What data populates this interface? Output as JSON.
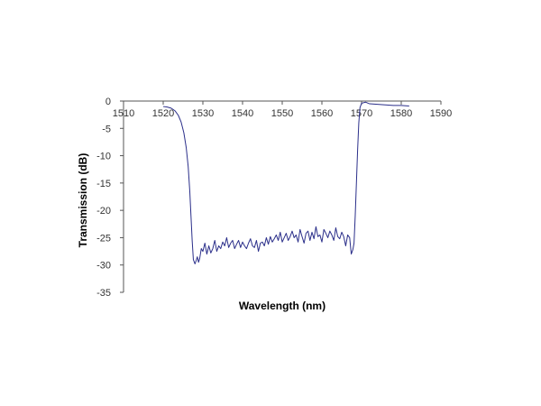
{
  "chart_data": {
    "type": "line",
    "title": "",
    "xlabel": "Wavelength (nm)",
    "ylabel": "Transmission (dB)",
    "xlim": [
      1510,
      1590
    ],
    "ylim": [
      -35,
      0
    ],
    "x_ticks": [
      1510,
      1520,
      1530,
      1540,
      1550,
      1560,
      1570,
      1580,
      1590
    ],
    "y_ticks": [
      0,
      -5,
      -10,
      -15,
      -20,
      -25,
      -30,
      -35
    ],
    "x_axis_position": "top",
    "grid": false,
    "legend": "none",
    "line_color": "#2b2f8a",
    "series": [
      {
        "x": [
          1520.0,
          1521.0,
          1522.0,
          1523.0,
          1523.8,
          1524.5,
          1525.2,
          1525.8,
          1526.3,
          1526.7,
          1527.0,
          1527.3,
          1527.6,
          1528.0,
          1528.3,
          1528.6,
          1528.9,
          1529.2,
          1529.6,
          1530.0,
          1530.5,
          1531.0,
          1531.5,
          1532.0,
          1532.5,
          1533.0,
          1533.5,
          1534.0,
          1534.5,
          1535.0,
          1535.5,
          1536.0,
          1536.5,
          1537.0,
          1537.5,
          1538.0,
          1538.5,
          1539.0,
          1539.5,
          1540.0,
          1540.5,
          1541.0,
          1541.5,
          1542.0,
          1542.5,
          1543.0,
          1543.5,
          1544.0,
          1544.5,
          1545.0,
          1545.5,
          1546.0,
          1546.5,
          1547.0,
          1547.5,
          1548.0,
          1548.5,
          1549.0,
          1549.5,
          1550.0,
          1550.5,
          1551.0,
          1551.5,
          1552.0,
          1552.5,
          1553.0,
          1553.5,
          1554.0,
          1554.5,
          1555.0,
          1555.5,
          1556.0,
          1556.5,
          1557.0,
          1557.5,
          1558.0,
          1558.5,
          1559.0,
          1559.5,
          1560.0,
          1560.5,
          1561.0,
          1561.5,
          1562.0,
          1562.5,
          1563.0,
          1563.5,
          1564.0,
          1564.5,
          1565.0,
          1565.5,
          1566.0,
          1566.5,
          1567.0,
          1567.4,
          1567.8,
          1568.1,
          1568.4,
          1568.7,
          1569.0,
          1569.3,
          1569.6,
          1570.0,
          1571.0,
          1572.0,
          1574.0,
          1576.0,
          1578.0,
          1580.0,
          1582.0
        ],
        "y": [
          -1.0,
          -1.1,
          -1.3,
          -1.8,
          -2.6,
          -3.8,
          -5.8,
          -8.5,
          -12.0,
          -16.5,
          -21.0,
          -25.5,
          -29.0,
          -29.8,
          -29.2,
          -28.5,
          -29.5,
          -28.8,
          -27.0,
          -27.5,
          -26.0,
          -28.0,
          -26.5,
          -27.8,
          -27.0,
          -25.5,
          -27.5,
          -26.5,
          -27.0,
          -25.8,
          -26.5,
          -25.0,
          -26.8,
          -26.0,
          -25.5,
          -27.0,
          -26.2,
          -25.5,
          -26.8,
          -25.8,
          -26.5,
          -27.0,
          -26.0,
          -25.2,
          -26.5,
          -26.8,
          -25.5,
          -27.5,
          -26.0,
          -25.8,
          -26.5,
          -25.0,
          -26.2,
          -24.8,
          -25.8,
          -25.2,
          -24.5,
          -25.5,
          -24.0,
          -25.8,
          -25.0,
          -24.2,
          -25.5,
          -24.8,
          -23.8,
          -25.0,
          -24.5,
          -25.8,
          -23.5,
          -24.8,
          -26.0,
          -24.2,
          -23.8,
          -25.5,
          -24.0,
          -25.2,
          -23.0,
          -24.8,
          -24.5,
          -25.8,
          -23.5,
          -24.2,
          -25.0,
          -23.8,
          -24.5,
          -25.5,
          -23.2,
          -24.8,
          -25.2,
          -24.0,
          -24.8,
          -26.5,
          -24.5,
          -25.0,
          -28.0,
          -27.2,
          -26.0,
          -21.0,
          -15.0,
          -9.0,
          -4.0,
          -1.2,
          -0.4,
          -0.2,
          -0.5,
          -0.6,
          -0.7,
          -0.8,
          -0.8,
          -0.9
        ]
      }
    ]
  }
}
